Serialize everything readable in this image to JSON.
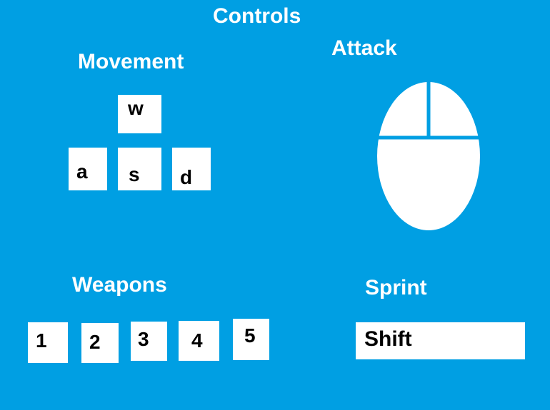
{
  "title": "Controls",
  "movement": {
    "heading": "Movement",
    "keys": {
      "up": "w",
      "left": "a",
      "down": "s",
      "right": "d"
    }
  },
  "attack": {
    "heading": "Attack",
    "icon": "mouse-icon"
  },
  "weapons": {
    "heading": "Weapons",
    "keys": [
      "1",
      "2",
      "3",
      "4",
      "5"
    ]
  },
  "sprint": {
    "heading": "Sprint",
    "key": "Shift"
  },
  "colors": {
    "background": "#009fe3",
    "key": "#ffffff",
    "heading": "#ffffff"
  }
}
